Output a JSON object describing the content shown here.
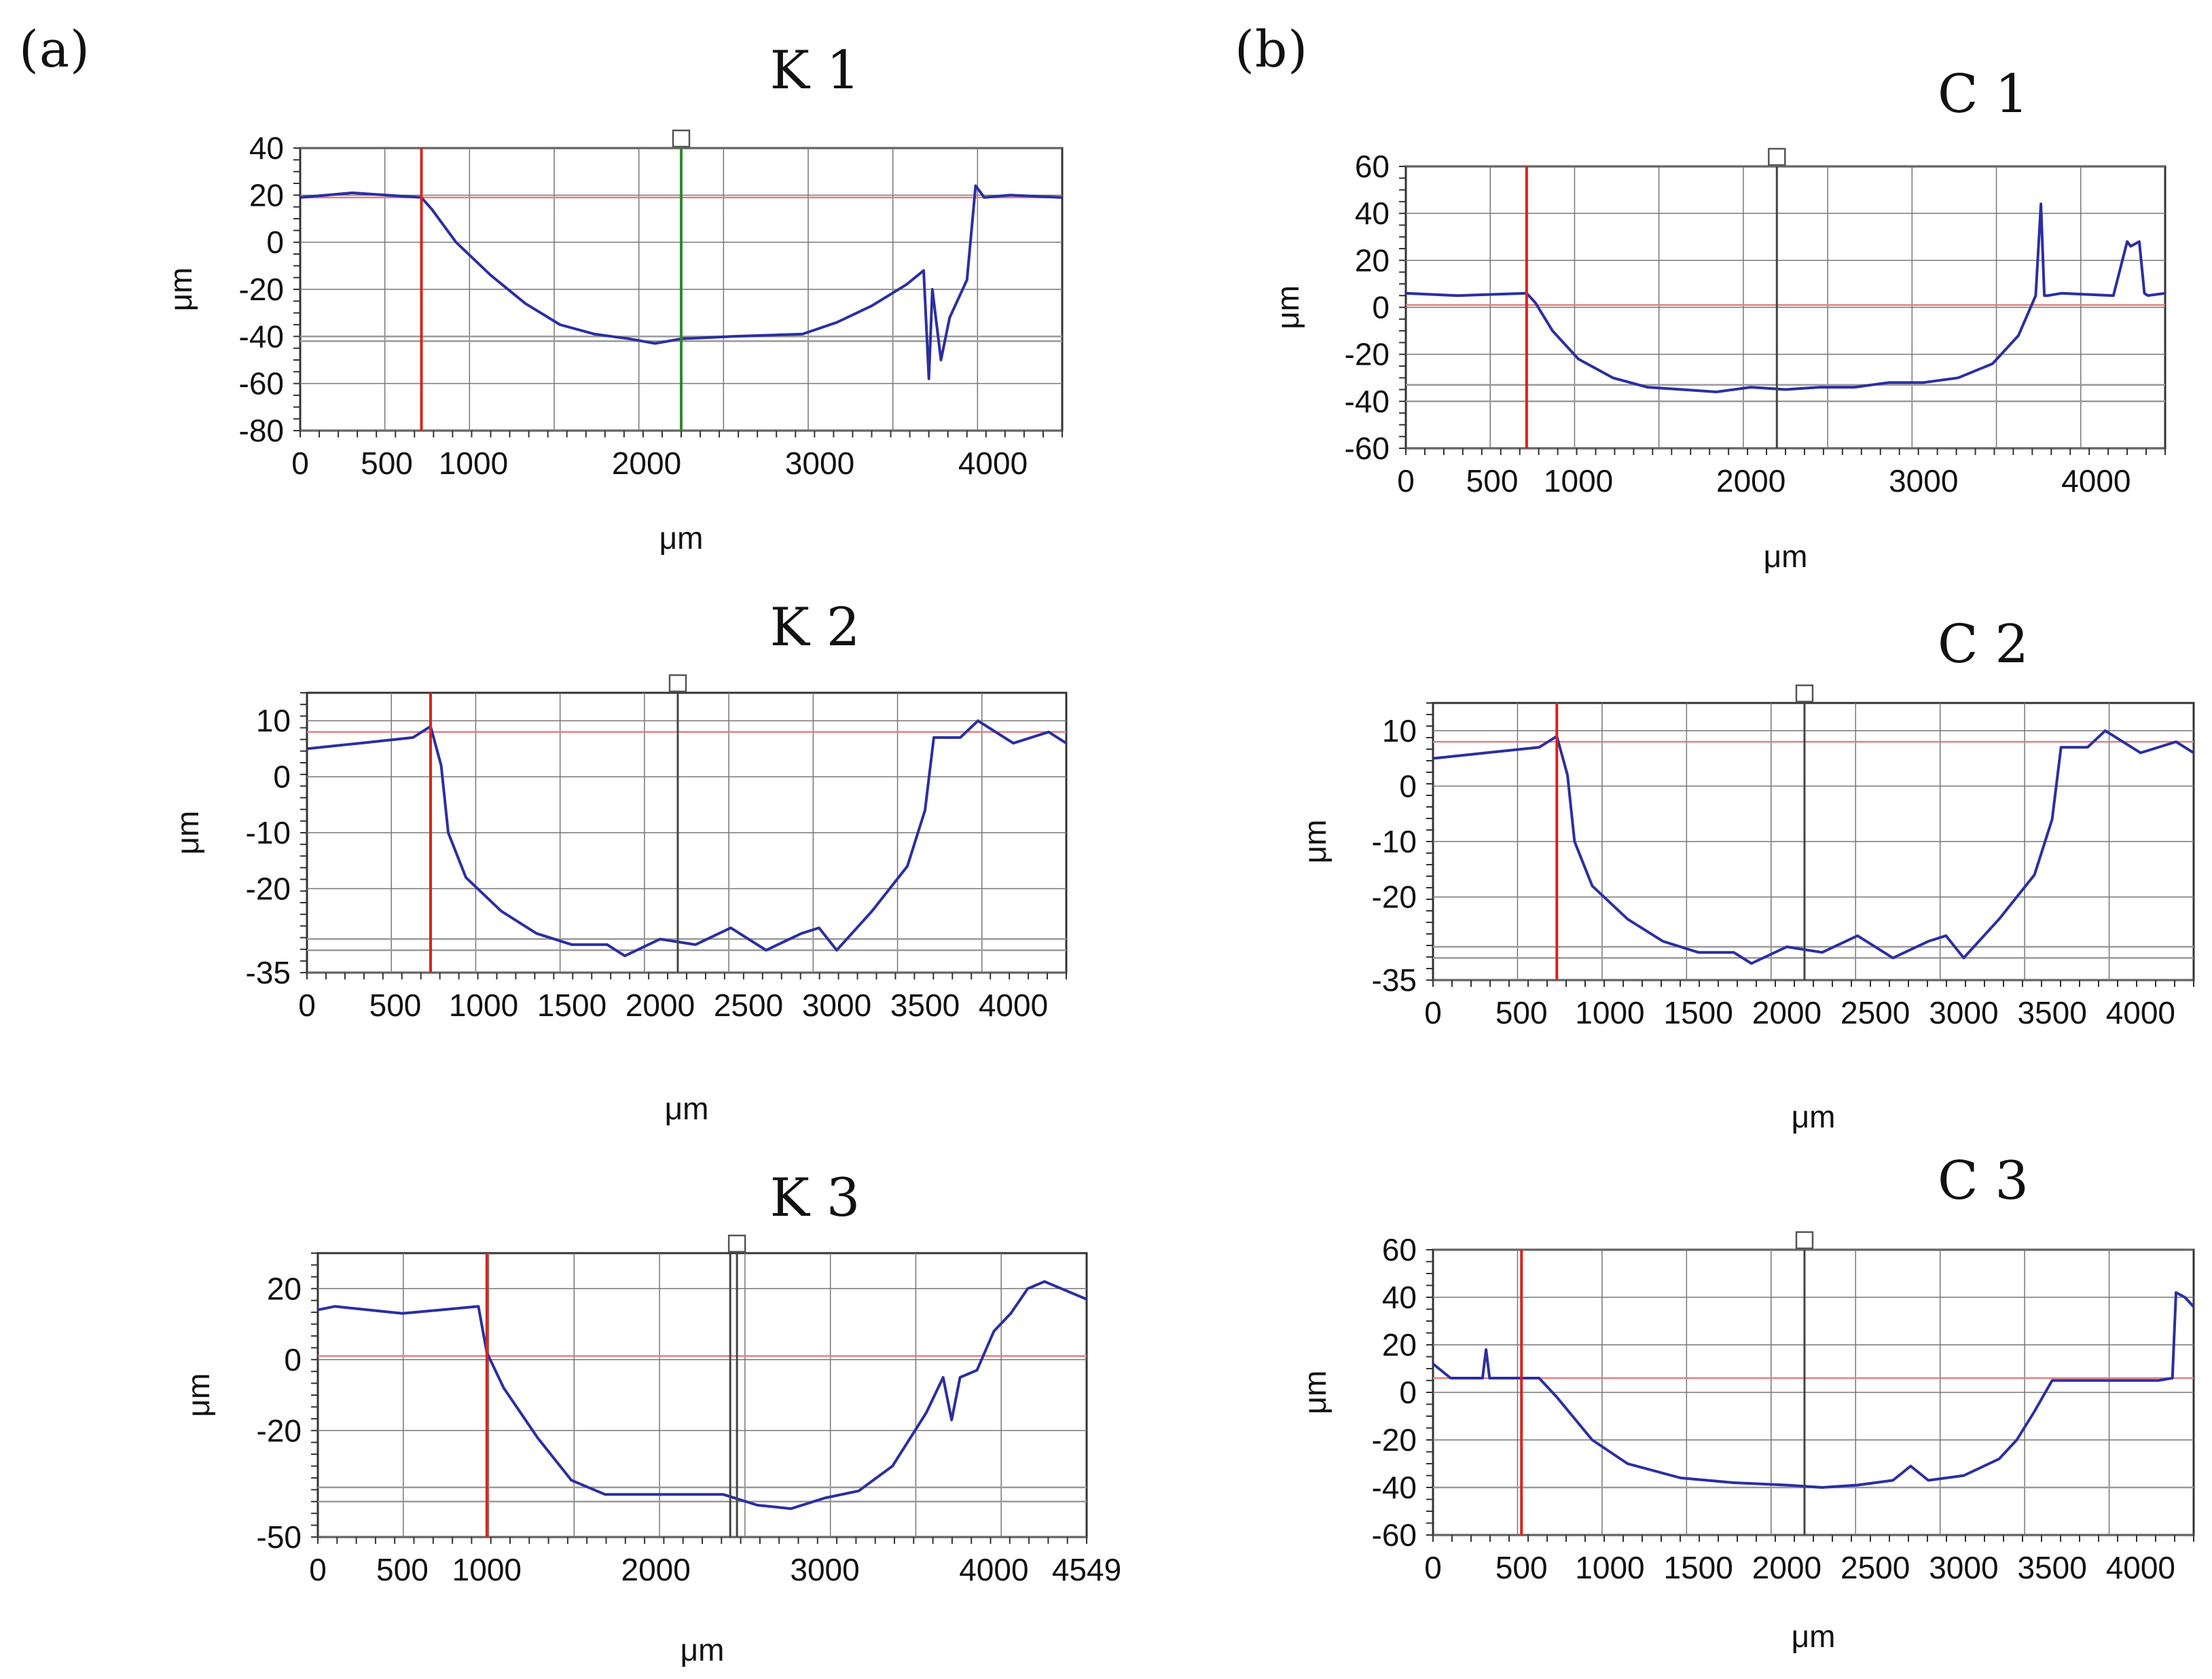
{
  "panels": {
    "a": "(a)",
    "b": "(b)"
  },
  "colors": {
    "profile": "#2b2fa0",
    "cursor_red": "#d9231b",
    "cursor_green": "#2d8a2d",
    "cursor_dark": "#444444",
    "ref_line": "#e08080",
    "grid": "#777777",
    "frame": "#333333"
  },
  "chart_data": [
    {
      "id": "K1",
      "type": "line",
      "title": "K 1",
      "xlabel": "μm",
      "ylabel": "μm",
      "xlim": [
        0,
        4400
      ],
      "ylim": [
        -80,
        40
      ],
      "xticks": [
        0,
        500,
        1000,
        2000,
        3000,
        4000
      ],
      "yticks": [
        40,
        20,
        0,
        -20,
        -40,
        -60,
        -80
      ],
      "cursors": [
        {
          "x": 700,
          "color": "red"
        },
        {
          "x": 2200,
          "color": "green"
        }
      ],
      "hlines": [
        {
          "y": 19,
          "color": "red"
        },
        {
          "y": -40
        },
        {
          "y": -42
        }
      ],
      "series": [
        {
          "name": "profile",
          "x": [
            0,
            300,
            700,
            760,
            900,
            1100,
            1300,
            1500,
            1700,
            1900,
            2050,
            2200,
            2500,
            2900,
            3100,
            3300,
            3500,
            3600,
            3630,
            3650,
            3700,
            3750,
            3850,
            3900,
            3950,
            4100,
            4400
          ],
          "y": [
            19,
            21,
            19,
            14,
            0,
            -14,
            -26,
            -35,
            -39,
            -41,
            -43,
            -41,
            -40,
            -39,
            -34,
            -27,
            -18,
            -12,
            -58,
            -20,
            -50,
            -32,
            -16,
            24,
            19,
            20,
            19
          ]
        }
      ]
    },
    {
      "id": "K2",
      "type": "line",
      "title": "K 2",
      "xlabel": "μm",
      "ylabel": "μm",
      "xlim": [
        0,
        4300
      ],
      "ylim": [
        -35,
        15
      ],
      "xticks": [
        0,
        500,
        1000,
        1500,
        2000,
        2500,
        3000,
        3500,
        4000
      ],
      "yticks": [
        10,
        0,
        -10,
        -20,
        -35
      ],
      "cursors": [
        {
          "x": 700,
          "color": "red"
        },
        {
          "x": 2100,
          "color": "dark"
        }
      ],
      "hlines": [
        {
          "y": 8,
          "color": "red"
        },
        {
          "y": -29
        },
        {
          "y": -31
        }
      ],
      "series": [
        {
          "name": "profile",
          "x": [
            0,
            300,
            600,
            700,
            760,
            800,
            900,
            1100,
            1300,
            1500,
            1700,
            1800,
            2000,
            2200,
            2400,
            2600,
            2800,
            2900,
            3000,
            3200,
            3400,
            3500,
            3550,
            3700,
            3800,
            4000,
            4200,
            4300
          ],
          "y": [
            5,
            6,
            7,
            9,
            2,
            -10,
            -18,
            -24,
            -28,
            -30,
            -30,
            -32,
            -29,
            -30,
            -27,
            -31,
            -28,
            -27,
            -31,
            -24,
            -16,
            -6,
            7,
            7,
            10,
            6,
            8,
            6
          ]
        }
      ]
    },
    {
      "id": "K3",
      "type": "line",
      "title": "K 3",
      "xlabel": "μm",
      "ylabel": "μm",
      "xlim": [
        0,
        4549
      ],
      "ylim": [
        -50,
        30
      ],
      "xticks": [
        0,
        500,
        1000,
        2000,
        3000,
        4000,
        4549
      ],
      "yticks": [
        20,
        0,
        -20,
        -50
      ],
      "cursors": [
        {
          "x": 1000,
          "color": "red"
        },
        {
          "x": 2440,
          "color": "dark"
        },
        {
          "x": 2480,
          "color": "dark"
        }
      ],
      "hlines": [
        {
          "y": 1,
          "color": "red"
        },
        {
          "y": -36
        },
        {
          "y": -40
        }
      ],
      "series": [
        {
          "name": "profile",
          "x": [
            0,
            100,
            500,
            950,
            1000,
            1100,
            1300,
            1500,
            1700,
            2000,
            2400,
            2600,
            2800,
            3000,
            3200,
            3400,
            3600,
            3700,
            3750,
            3800,
            3900,
            4000,
            4100,
            4200,
            4300,
            4549
          ],
          "y": [
            14,
            15,
            13,
            15,
            2,
            -8,
            -22,
            -34,
            -38,
            -38,
            -38,
            -41,
            -42,
            -39,
            -37,
            -30,
            -15,
            -5,
            -17,
            -5,
            -3,
            8,
            13,
            20,
            22,
            17
          ]
        }
      ]
    },
    {
      "id": "C1",
      "type": "line",
      "title": "C 1",
      "xlabel": "μm",
      "ylabel": "μm",
      "xlim": [
        0,
        4400
      ],
      "ylim": [
        -60,
        60
      ],
      "xticks": [
        0,
        500,
        1000,
        2000,
        3000,
        4000
      ],
      "yticks": [
        60,
        40,
        20,
        0,
        -20,
        -40,
        -60
      ],
      "cursors": [
        {
          "x": 700,
          "color": "red"
        },
        {
          "x": 2150,
          "color": "dark"
        }
      ],
      "hlines": [
        {
          "y": 1,
          "color": "red"
        },
        {
          "y": -33
        },
        {
          "y": -40
        }
      ],
      "series": [
        {
          "name": "profile",
          "x": [
            0,
            300,
            700,
            750,
            850,
            1000,
            1200,
            1400,
            1600,
            1800,
            2000,
            2200,
            2400,
            2600,
            2800,
            3000,
            3200,
            3400,
            3550,
            3650,
            3680,
            3700,
            3720,
            3800,
            4100,
            4180,
            4200,
            4250,
            4280,
            4300,
            4400
          ],
          "y": [
            6,
            5,
            6,
            2,
            -10,
            -22,
            -30,
            -34,
            -35,
            -36,
            -34,
            -35,
            -34,
            -34,
            -32,
            -32,
            -30,
            -24,
            -12,
            5,
            44,
            5,
            5,
            6,
            5,
            28,
            26,
            28,
            6,
            5,
            6
          ]
        }
      ]
    },
    {
      "id": "C2",
      "type": "line",
      "title": "C 2",
      "xlabel": "μm",
      "ylabel": "μm",
      "xlim": [
        0,
        4300
      ],
      "ylim": [
        -35,
        15
      ],
      "xticks": [
        0,
        500,
        1000,
        1500,
        2000,
        2500,
        3000,
        3500,
        4000
      ],
      "yticks": [
        10,
        0,
        -10,
        -20,
        -35
      ],
      "cursors": [
        {
          "x": 700,
          "color": "red"
        },
        {
          "x": 2100,
          "color": "dark"
        }
      ],
      "hlines": [
        {
          "y": 8,
          "color": "red"
        },
        {
          "y": -29
        },
        {
          "y": -31
        }
      ],
      "series": [
        {
          "name": "profile",
          "x": [
            0,
            300,
            600,
            700,
            760,
            800,
            900,
            1100,
            1300,
            1500,
            1700,
            1800,
            2000,
            2200,
            2400,
            2600,
            2800,
            2900,
            3000,
            3200,
            3400,
            3500,
            3550,
            3700,
            3800,
            4000,
            4200,
            4300
          ],
          "y": [
            5,
            6,
            7,
            9,
            2,
            -10,
            -18,
            -24,
            -28,
            -30,
            -30,
            -32,
            -29,
            -30,
            -27,
            -31,
            -28,
            -27,
            -31,
            -24,
            -16,
            -6,
            7,
            7,
            10,
            6,
            8,
            6
          ]
        }
      ]
    },
    {
      "id": "C3",
      "type": "line",
      "title": "C 3",
      "xlabel": "μm",
      "ylabel": "μm",
      "xlim": [
        0,
        4300
      ],
      "ylim": [
        -60,
        60
      ],
      "xticks": [
        0,
        500,
        1000,
        1500,
        2000,
        2500,
        3000,
        3500,
        4000
      ],
      "yticks": [
        60,
        40,
        20,
        0,
        -20,
        -40,
        -60
      ],
      "cursors": [
        {
          "x": 500,
          "color": "red"
        },
        {
          "x": 2100,
          "color": "dark"
        }
      ],
      "hlines": [
        {
          "y": 6,
          "color": "red"
        },
        {
          "y": -40
        }
      ],
      "series": [
        {
          "name": "profile",
          "x": [
            0,
            100,
            280,
            300,
            320,
            500,
            600,
            700,
            900,
            1100,
            1400,
            1700,
            2000,
            2200,
            2400,
            2600,
            2700,
            2800,
            3000,
            3200,
            3300,
            3400,
            3500,
            3800,
            4100,
            4180,
            4200,
            4250,
            4300
          ],
          "y": [
            12,
            6,
            6,
            18,
            6,
            6,
            6,
            -2,
            -20,
            -30,
            -36,
            -38,
            -39,
            -40,
            -39,
            -37,
            -31,
            -37,
            -35,
            -28,
            -20,
            -8,
            5,
            5,
            5,
            6,
            42,
            40,
            36
          ]
        }
      ]
    }
  ]
}
